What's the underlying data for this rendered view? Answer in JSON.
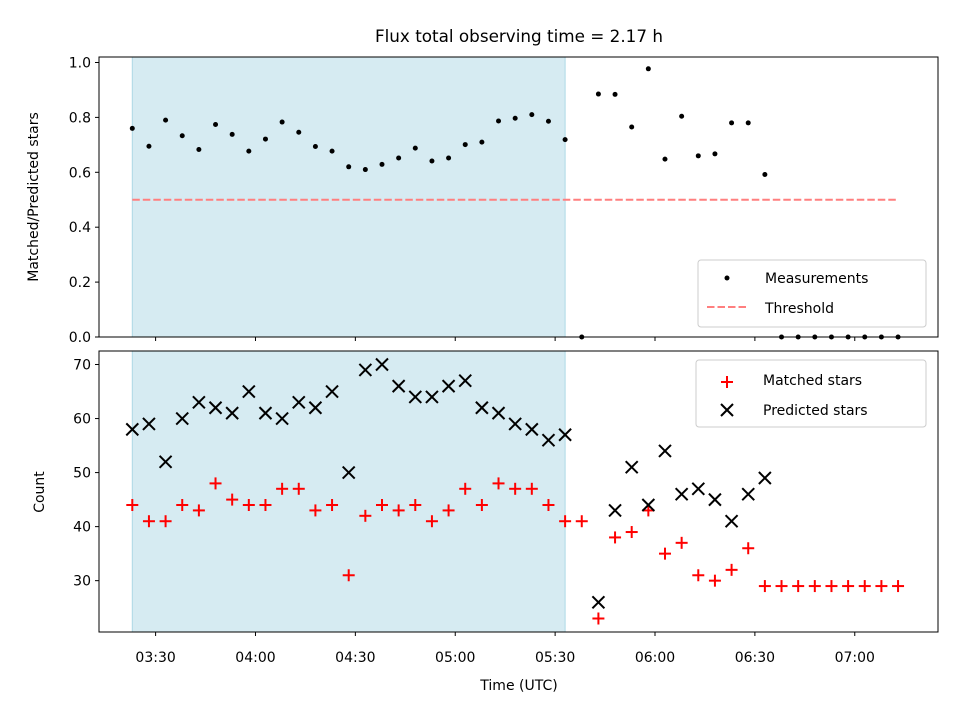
{
  "figure": {
    "title": "Flux total observing time = 2.17 h",
    "xlabel": "Time (UTC)"
  },
  "chart_data": [
    {
      "type": "scatter",
      "name": "ratio-panel",
      "ylabel": "Matched/Predicted stars",
      "xlim": [
        "03:13",
        "07:25"
      ],
      "ylim": [
        0,
        1.02
      ],
      "yticks": [
        "0.0",
        "0.2",
        "0.4",
        "0.6",
        "0.8",
        "1.0"
      ],
      "shaded_span": [
        "03:23",
        "05:33"
      ],
      "threshold": {
        "name": "Threshold",
        "y": 0.5,
        "x": [
          "03:23",
          "07:13"
        ],
        "color": "#ff7f7f"
      },
      "series": [
        {
          "name": "Measurements",
          "color": "#000000",
          "x": [
            "03:23",
            "03:28",
            "03:33",
            "03:38",
            "03:43",
            "03:48",
            "03:53",
            "03:58",
            "04:03",
            "04:08",
            "04:13",
            "04:18",
            "04:23",
            "04:28",
            "04:33",
            "04:38",
            "04:43",
            "04:48",
            "04:53",
            "04:58",
            "05:03",
            "05:08",
            "05:13",
            "05:18",
            "05:23",
            "05:28",
            "05:33",
            "05:38",
            "05:43",
            "05:48",
            "05:53",
            "05:58",
            "06:03",
            "06:08",
            "06:13",
            "06:18",
            "06:23",
            "06:28",
            "06:33",
            "06:38",
            "06:43",
            "06:48",
            "06:53",
            "06:58",
            "07:03",
            "07:08",
            "07:13"
          ],
          "values": [
            0.76,
            0.695,
            0.79,
            0.733,
            0.683,
            0.774,
            0.738,
            0.677,
            0.721,
            0.783,
            0.746,
            0.694,
            0.677,
            0.62,
            0.61,
            0.629,
            0.652,
            0.688,
            0.641,
            0.652,
            0.701,
            0.71,
            0.787,
            0.797,
            0.81,
            0.786,
            0.719,
            0.0,
            0.885,
            0.884,
            0.765,
            0.977,
            0.648,
            0.804,
            0.66,
            0.667,
            0.78,
            0.78,
            0.592,
            0.0,
            0.0,
            0.0,
            0.0,
            0.0,
            0.0,
            0.0,
            0.0
          ]
        }
      ],
      "legend": {
        "position": "lower-right",
        "items": [
          "Measurements",
          "Threshold"
        ]
      }
    },
    {
      "type": "scatter",
      "name": "count-panel",
      "ylabel": "Count",
      "xlim": [
        "03:13",
        "07:25"
      ],
      "ylim": [
        20.5,
        72.5
      ],
      "yticks": [
        "30",
        "40",
        "50",
        "60",
        "70"
      ],
      "xticks": [
        "03:30",
        "04:00",
        "04:30",
        "05:00",
        "05:30",
        "06:00",
        "06:30",
        "07:00"
      ],
      "shaded_span": [
        "03:23",
        "05:33"
      ],
      "series": [
        {
          "name": "Matched stars",
          "marker": "+",
          "color": "#ff0000",
          "x": [
            "03:23",
            "03:28",
            "03:33",
            "03:38",
            "03:43",
            "03:48",
            "03:53",
            "03:58",
            "04:03",
            "04:08",
            "04:13",
            "04:18",
            "04:23",
            "04:28",
            "04:33",
            "04:38",
            "04:43",
            "04:48",
            "04:53",
            "04:58",
            "05:03",
            "05:08",
            "05:13",
            "05:18",
            "05:23",
            "05:28",
            "05:33",
            "05:38",
            "05:43",
            "05:48",
            "05:53",
            "05:58",
            "06:03",
            "06:08",
            "06:13",
            "06:18",
            "06:23",
            "06:28",
            "06:33",
            "06:38",
            "06:43",
            "06:48",
            "06:53",
            "06:58",
            "07:03",
            "07:08",
            "07:13"
          ],
          "values": [
            44,
            41,
            41,
            44,
            43,
            48,
            45,
            44,
            44,
            47,
            47,
            43,
            44,
            31,
            42,
            44,
            43,
            44,
            41,
            43,
            47,
            44,
            48,
            47,
            47,
            44,
            41,
            41,
            23,
            38,
            39,
            43,
            35,
            37,
            31,
            30,
            32,
            36,
            29,
            29,
            29,
            29,
            29,
            29,
            29,
            29,
            29
          ]
        },
        {
          "name": "Predicted stars",
          "marker": "x",
          "color": "#000000",
          "x": [
            "03:23",
            "03:28",
            "03:33",
            "03:38",
            "03:43",
            "03:48",
            "03:53",
            "03:58",
            "04:03",
            "04:08",
            "04:13",
            "04:18",
            "04:23",
            "04:28",
            "04:33",
            "04:38",
            "04:43",
            "04:48",
            "04:53",
            "04:58",
            "05:03",
            "05:08",
            "05:13",
            "05:18",
            "05:23",
            "05:28",
            "05:33",
            "05:43",
            "05:48",
            "05:53",
            "05:58",
            "06:03",
            "06:08",
            "06:13",
            "06:18",
            "06:23",
            "06:28",
            "06:33"
          ],
          "values": [
            58,
            59,
            52,
            60,
            63,
            62,
            61,
            65,
            61,
            60,
            63,
            62,
            65,
            50,
            69,
            70,
            66,
            64,
            64,
            66,
            67,
            62,
            61,
            59,
            58,
            56,
            57,
            26,
            43,
            51,
            44,
            54,
            46,
            47,
            45,
            41,
            46,
            49
          ]
        }
      ],
      "legend": {
        "position": "upper-right",
        "items": [
          "Matched stars",
          "Predicted stars"
        ]
      }
    }
  ]
}
